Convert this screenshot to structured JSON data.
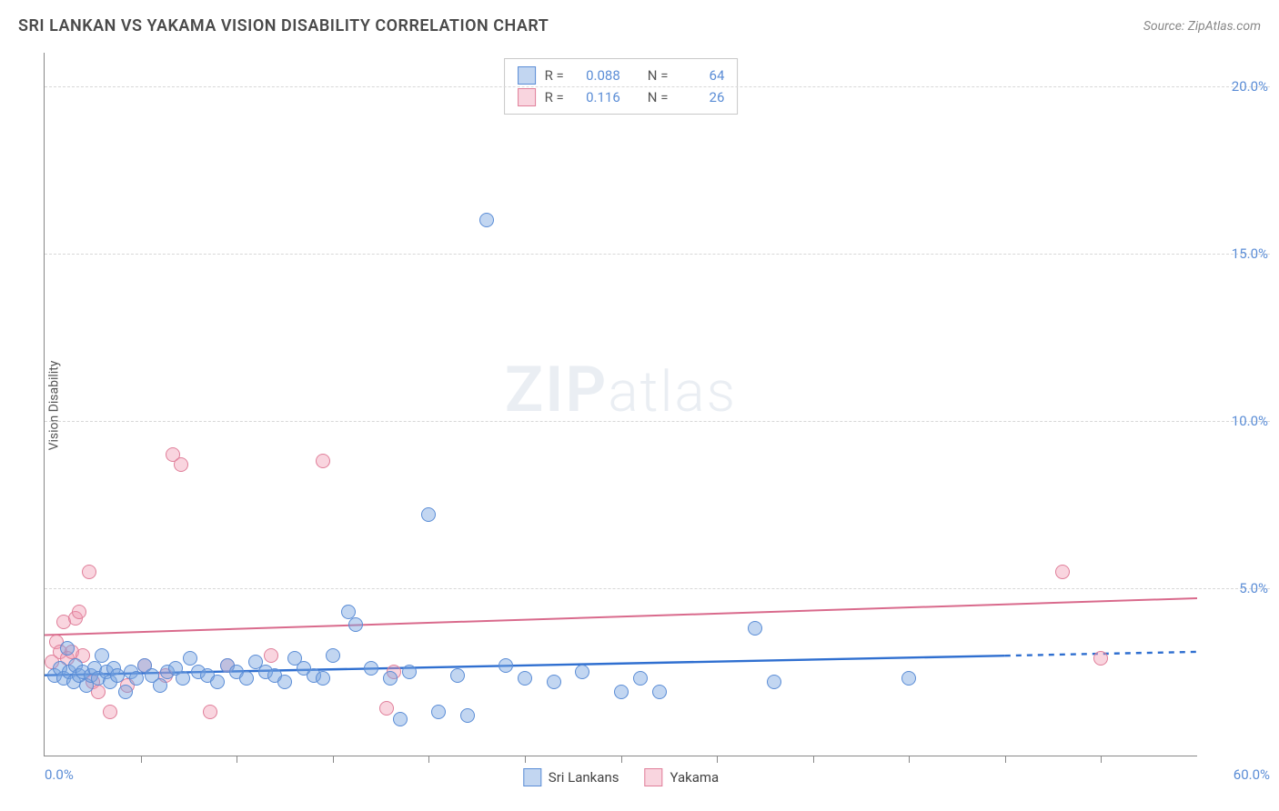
{
  "header": {
    "title": "SRI LANKAN VS YAKAMA VISION DISABILITY CORRELATION CHART",
    "source": "Source: ZipAtlas.com"
  },
  "watermark": {
    "bold": "ZIP",
    "light": "atlas"
  },
  "ylabel": "Vision Disability",
  "chart": {
    "type": "scatter",
    "xlim": [
      0,
      60
    ],
    "ylim": [
      0,
      21
    ],
    "background": "#ffffff",
    "grid_color": "#d8d8d8",
    "axis_color": "#888888",
    "yticks": [
      {
        "v": 5,
        "label": "5.0%"
      },
      {
        "v": 10,
        "label": "10.0%"
      },
      {
        "v": 15,
        "label": "15.0%"
      },
      {
        "v": 20,
        "label": "20.0%"
      }
    ],
    "xtick_positions": [
      5,
      10,
      15,
      20,
      25,
      30,
      35,
      40,
      45,
      50,
      55
    ],
    "x_min_label": "0.0%",
    "x_max_label": "60.0%",
    "marker_radius": 8,
    "marker_stroke_width": 1.4
  },
  "series": {
    "sri_lankans": {
      "label": "Sri Lankans",
      "fill": "rgba(120,165,225,0.45)",
      "stroke": "#5b8dd6",
      "trend_color": "#2f6fd0",
      "trend_width": 2.4,
      "trend": {
        "y_at_x0": 2.4,
        "y_at_x60": 3.1,
        "solid_until_x": 50
      },
      "R": "0.088",
      "N": "64",
      "points": [
        [
          0.5,
          2.4
        ],
        [
          0.8,
          2.6
        ],
        [
          1.0,
          2.3
        ],
        [
          1.2,
          3.2
        ],
        [
          1.3,
          2.5
        ],
        [
          1.5,
          2.2
        ],
        [
          1.6,
          2.7
        ],
        [
          1.8,
          2.4
        ],
        [
          2.0,
          2.5
        ],
        [
          2.2,
          2.1
        ],
        [
          2.4,
          2.4
        ],
        [
          2.6,
          2.6
        ],
        [
          2.8,
          2.3
        ],
        [
          3.0,
          3.0
        ],
        [
          3.2,
          2.5
        ],
        [
          3.4,
          2.2
        ],
        [
          3.6,
          2.6
        ],
        [
          3.8,
          2.4
        ],
        [
          4.2,
          1.9
        ],
        [
          4.5,
          2.5
        ],
        [
          4.8,
          2.3
        ],
        [
          5.2,
          2.7
        ],
        [
          5.6,
          2.4
        ],
        [
          6.0,
          2.1
        ],
        [
          6.4,
          2.5
        ],
        [
          6.8,
          2.6
        ],
        [
          7.2,
          2.3
        ],
        [
          7.6,
          2.9
        ],
        [
          8.0,
          2.5
        ],
        [
          8.5,
          2.4
        ],
        [
          9.0,
          2.2
        ],
        [
          9.5,
          2.7
        ],
        [
          10.0,
          2.5
        ],
        [
          10.5,
          2.3
        ],
        [
          11.0,
          2.8
        ],
        [
          11.5,
          2.5
        ],
        [
          12.0,
          2.4
        ],
        [
          12.5,
          2.2
        ],
        [
          13.0,
          2.9
        ],
        [
          13.5,
          2.6
        ],
        [
          14.0,
          2.4
        ],
        [
          14.5,
          2.3
        ],
        [
          15.0,
          3.0
        ],
        [
          15.8,
          4.3
        ],
        [
          16.2,
          3.9
        ],
        [
          17.0,
          2.6
        ],
        [
          18.0,
          2.3
        ],
        [
          18.5,
          1.1
        ],
        [
          19.0,
          2.5
        ],
        [
          20.0,
          7.2
        ],
        [
          20.5,
          1.3
        ],
        [
          21.5,
          2.4
        ],
        [
          22.0,
          1.2
        ],
        [
          23.0,
          16.0
        ],
        [
          24.0,
          2.7
        ],
        [
          25.0,
          2.3
        ],
        [
          26.5,
          2.2
        ],
        [
          28.0,
          2.5
        ],
        [
          30.0,
          1.9
        ],
        [
          31.0,
          2.3
        ],
        [
          32.0,
          1.9
        ],
        [
          37.0,
          3.8
        ],
        [
          38.0,
          2.2
        ],
        [
          45.0,
          2.3
        ]
      ]
    },
    "yakama": {
      "label": "Yakama",
      "fill": "rgba(240,150,175,0.40)",
      "stroke": "#e07f9a",
      "trend_color": "#d96a8c",
      "trend_width": 2.0,
      "trend": {
        "y_at_x0": 3.6,
        "y_at_x60": 4.7,
        "solid_until_x": 60
      },
      "R": "0.116",
      "N": "26",
      "points": [
        [
          0.4,
          2.8
        ],
        [
          0.6,
          3.4
        ],
        [
          0.8,
          3.1
        ],
        [
          1.0,
          4.0
        ],
        [
          1.2,
          2.9
        ],
        [
          1.4,
          3.1
        ],
        [
          1.6,
          4.1
        ],
        [
          1.8,
          4.3
        ],
        [
          2.0,
          3.0
        ],
        [
          2.3,
          5.5
        ],
        [
          2.5,
          2.2
        ],
        [
          2.8,
          1.9
        ],
        [
          3.4,
          1.3
        ],
        [
          4.3,
          2.1
        ],
        [
          5.2,
          2.7
        ],
        [
          6.3,
          2.4
        ],
        [
          6.7,
          9.0
        ],
        [
          7.1,
          8.7
        ],
        [
          8.6,
          1.3
        ],
        [
          9.5,
          2.7
        ],
        [
          11.8,
          3.0
        ],
        [
          14.5,
          8.8
        ],
        [
          17.8,
          1.4
        ],
        [
          18.2,
          2.5
        ],
        [
          53.0,
          5.5
        ],
        [
          55.0,
          2.9
        ]
      ]
    }
  },
  "legend_top": {
    "r_label": "R =",
    "n_label": "N ="
  }
}
